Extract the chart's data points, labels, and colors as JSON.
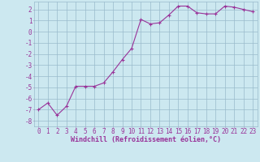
{
  "x": [
    0,
    1,
    2,
    3,
    4,
    5,
    6,
    7,
    8,
    9,
    10,
    11,
    12,
    13,
    14,
    15,
    16,
    17,
    18,
    19,
    20,
    21,
    22,
    23
  ],
  "y": [
    -7.0,
    -6.4,
    -7.5,
    -6.7,
    -4.9,
    -4.9,
    -4.9,
    -4.6,
    -3.6,
    -2.5,
    -1.5,
    1.1,
    0.7,
    0.8,
    1.5,
    2.3,
    2.3,
    1.7,
    1.6,
    1.6,
    2.3,
    2.2,
    2.0,
    1.8
  ],
  "line_color": "#993399",
  "marker": "+",
  "background_color": "#cce8f0",
  "grid_color": "#99bbcc",
  "xlabel": "Windchill (Refroidissement éolien,°C)",
  "xlabel_color": "#993399",
  "tick_color": "#993399",
  "xlim": [
    -0.5,
    23.5
  ],
  "ylim": [
    -8.5,
    2.7
  ],
  "yticks": [
    -8,
    -7,
    -6,
    -5,
    -4,
    -3,
    -2,
    -1,
    0,
    1,
    2
  ],
  "xticks": [
    0,
    1,
    2,
    3,
    4,
    5,
    6,
    7,
    8,
    9,
    10,
    11,
    12,
    13,
    14,
    15,
    16,
    17,
    18,
    19,
    20,
    21,
    22,
    23
  ],
  "figsize": [
    3.2,
    2.0
  ],
  "dpi": 100,
  "tick_fontsize": 5.5,
  "xlabel_fontsize": 6.0,
  "linewidth": 0.8,
  "markersize": 3
}
